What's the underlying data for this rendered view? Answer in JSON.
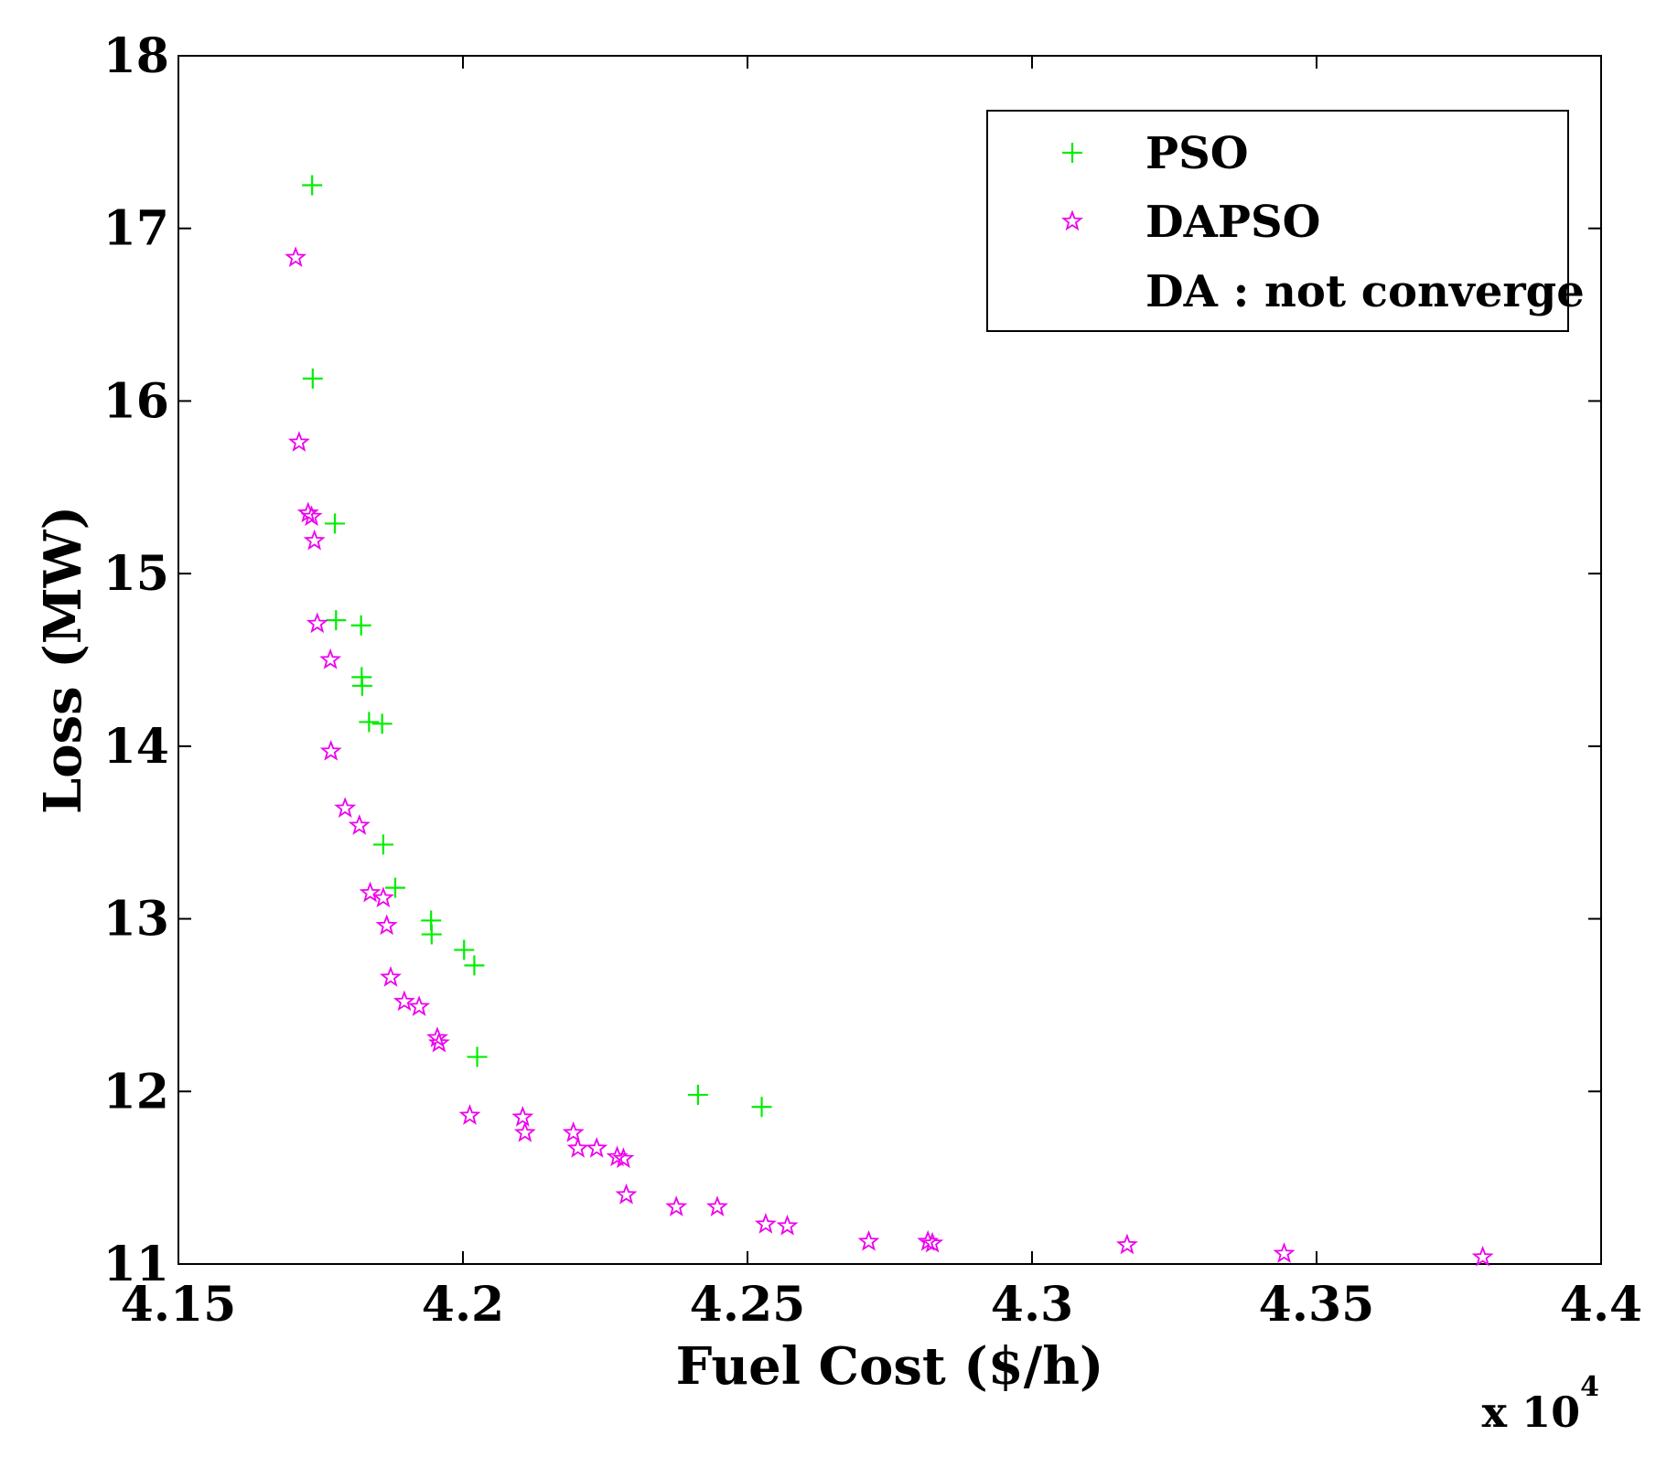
{
  "chart_data": {
    "type": "scatter",
    "title": "",
    "xlabel": "Fuel Cost ($/h)",
    "ylabel": "Loss (MW)",
    "x_multiplier": {
      "prefix": "x 10",
      "exponent": "4"
    },
    "xlim": [
      4.15,
      4.4
    ],
    "ylim": [
      11,
      18
    ],
    "xticks": [
      4.15,
      4.2,
      4.25,
      4.3,
      4.35,
      4.4
    ],
    "xtick_labels": [
      "4.15",
      "4.2",
      "4.25",
      "4.3",
      "4.35",
      "4.4"
    ],
    "yticks": [
      11,
      12,
      13,
      14,
      15,
      16,
      17,
      18
    ],
    "ytick_labels": [
      "11",
      "12",
      "13",
      "14",
      "15",
      "16",
      "17",
      "18"
    ],
    "grid": false,
    "legend": {
      "position": "top-right",
      "entries": [
        "PSO",
        "DAPSO",
        "DA : not converge"
      ]
    },
    "series": [
      {
        "name": "PSO",
        "marker": "plus",
        "color": "#00ee00",
        "points": [
          [
            4.1735,
            17.25
          ],
          [
            4.1736,
            16.13
          ],
          [
            4.1775,
            15.29
          ],
          [
            4.1777,
            14.73
          ],
          [
            4.1821,
            14.7
          ],
          [
            4.1822,
            14.4
          ],
          [
            4.1823,
            14.35
          ],
          [
            4.1835,
            14.14
          ],
          [
            4.1858,
            14.13
          ],
          [
            4.186,
            13.43
          ],
          [
            4.1881,
            13.18
          ],
          [
            4.1944,
            12.99
          ],
          [
            4.1945,
            12.91
          ],
          [
            4.2002,
            12.82
          ],
          [
            4.202,
            12.73
          ],
          [
            4.2025,
            12.2
          ],
          [
            4.2413,
            11.98
          ],
          [
            4.2525,
            11.91
          ]
        ]
      },
      {
        "name": "DAPSO",
        "marker": "star",
        "color": "#ee00ee",
        "points": [
          [
            4.1706,
            16.83
          ],
          [
            4.1712,
            15.76
          ],
          [
            4.1728,
            15.35
          ],
          [
            4.1734,
            15.33
          ],
          [
            4.1739,
            15.19
          ],
          [
            4.1744,
            14.71
          ],
          [
            4.1767,
            14.5
          ],
          [
            4.1768,
            13.97
          ],
          [
            4.1793,
            13.64
          ],
          [
            4.1818,
            13.54
          ],
          [
            4.1837,
            13.15
          ],
          [
            4.186,
            13.12
          ],
          [
            4.1866,
            12.96
          ],
          [
            4.1873,
            12.66
          ],
          [
            4.1897,
            12.52
          ],
          [
            4.1923,
            12.49
          ],
          [
            4.1955,
            12.31
          ],
          [
            4.1958,
            12.28
          ],
          [
            4.2012,
            11.86
          ],
          [
            4.2105,
            11.85
          ],
          [
            4.2109,
            11.76
          ],
          [
            4.2194,
            11.76
          ],
          [
            4.2202,
            11.67
          ],
          [
            4.2235,
            11.67
          ],
          [
            4.2271,
            11.62
          ],
          [
            4.2282,
            11.61
          ],
          [
            4.2287,
            11.4
          ],
          [
            4.2375,
            11.33
          ],
          [
            4.2447,
            11.33
          ],
          [
            4.2532,
            11.23
          ],
          [
            4.257,
            11.22
          ],
          [
            4.2713,
            11.13
          ],
          [
            4.2817,
            11.13
          ],
          [
            4.2825,
            11.12
          ],
          [
            4.3167,
            11.11
          ],
          [
            4.3443,
            11.06
          ],
          [
            4.3792,
            11.04
          ]
        ]
      }
    ]
  }
}
